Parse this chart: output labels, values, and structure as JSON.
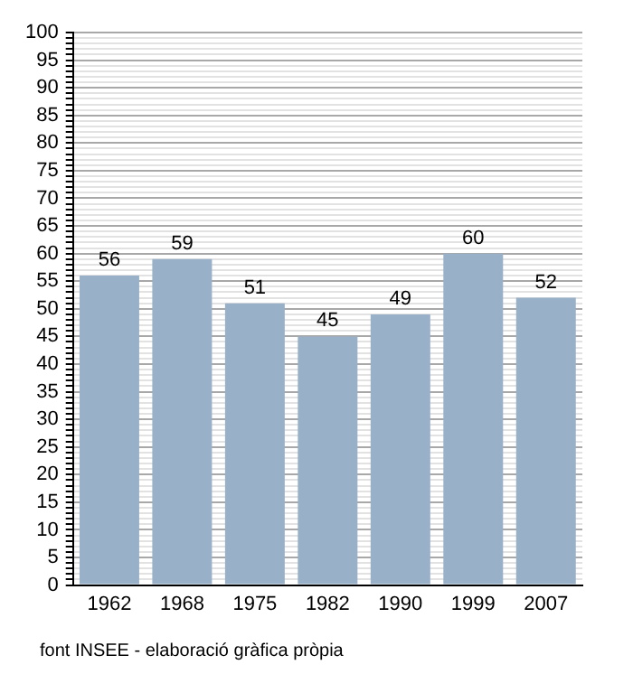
{
  "chart_data": {
    "type": "bar",
    "categories": [
      "1962",
      "1968",
      "1975",
      "1982",
      "1990",
      "1999",
      "2007"
    ],
    "values": [
      56,
      59,
      51,
      45,
      49,
      60,
      52
    ],
    "color": "#98b0c8",
    "ylim": [
      0,
      100
    ],
    "yticks": [
      0,
      {
        "value": 1,
        "label": null
      },
      {
        "value": 2,
        "label": null
      },
      {
        "value": 3,
        "label": null
      },
      {
        "value": 4,
        "label": null
      },
      5,
      {
        "value": 6,
        "label": null
      },
      {
        "value": 7,
        "label": null
      },
      {
        "value": 8,
        "label": null
      },
      {
        "value": 9,
        "label": null
      },
      10,
      {
        "value": 11,
        "label": null
      },
      {
        "value": 12,
        "label": null
      },
      {
        "value": 13,
        "label": null
      },
      {
        "value": 14,
        "label": null
      },
      15,
      {
        "value": 16,
        "label": null
      },
      {
        "value": 17,
        "label": null
      },
      {
        "value": 18,
        "label": null
      },
      {
        "value": 19,
        "label": null
      },
      20,
      {
        "value": 21,
        "label": null
      },
      {
        "value": 22,
        "label": null
      },
      {
        "value": 23,
        "label": null
      },
      {
        "value": 24,
        "label": null
      },
      25,
      {
        "value": 26,
        "label": null
      },
      {
        "value": 27,
        "label": null
      },
      {
        "value": 28,
        "label": null
      },
      {
        "value": 29,
        "label": null
      },
      30,
      {
        "value": 31,
        "label": null
      },
      {
        "value": 32,
        "label": null
      },
      {
        "value": 33,
        "label": null
      },
      {
        "value": 34,
        "label": null
      },
      35,
      {
        "value": 36,
        "label": null
      },
      {
        "value": 37,
        "label": null
      },
      {
        "value": 38,
        "label": null
      },
      {
        "value": 39,
        "label": null
      },
      40,
      {
        "value": 41,
        "label": null
      },
      {
        "value": 42,
        "label": null
      },
      {
        "value": 43,
        "label": null
      },
      {
        "value": 44,
        "label": null
      },
      45,
      {
        "value": 46,
        "label": null
      },
      {
        "value": 47,
        "label": null
      },
      {
        "value": 48,
        "label": null
      },
      {
        "value": 49,
        "label": null
      },
      50,
      {
        "value": 51,
        "label": null
      },
      {
        "value": 52,
        "label": null
      },
      {
        "value": 53,
        "label": null
      },
      {
        "value": 54,
        "label": null
      },
      55,
      {
        "value": 56,
        "label": null
      },
      {
        "value": 57,
        "label": null
      },
      {
        "value": 58,
        "label": null
      },
      {
        "value": 59,
        "label": null
      },
      60,
      {
        "value": 61,
        "label": null
      },
      {
        "value": 62,
        "label": null
      },
      {
        "value": 63,
        "label": null
      },
      {
        "value": 64,
        "label": null
      },
      65,
      {
        "value": 66,
        "label": null
      },
      {
        "value": 67,
        "label": null
      },
      {
        "value": 68,
        "label": null
      },
      {
        "value": 69,
        "label": null
      },
      70,
      {
        "value": 71,
        "label": null
      },
      {
        "value": 72,
        "label": null
      },
      {
        "value": 73,
        "label": null
      },
      {
        "value": 74,
        "label": null
      },
      75,
      {
        "value": 76,
        "label": null
      },
      {
        "value": 77,
        "label": null
      },
      {
        "value": 78,
        "label": null
      },
      {
        "value": 79,
        "label": null
      },
      80,
      {
        "value": 81,
        "label": null
      },
      {
        "value": 82,
        "label": null
      },
      {
        "value": 83,
        "label": null
      },
      {
        "value": 84,
        "label": null
      },
      85,
      {
        "value": 86,
        "label": null
      },
      {
        "value": 87,
        "label": null
      },
      {
        "value": 88,
        "label": null
      },
      {
        "value": 89,
        "label": null
      },
      90,
      {
        "value": 91,
        "label": null
      },
      {
        "value": 92,
        "label": null
      },
      {
        "value": 93,
        "label": null
      },
      {
        "value": 94,
        "label": null
      },
      95,
      {
        "value": 96,
        "label": null
      },
      {
        "value": 97,
        "label": null
      },
      {
        "value": 98,
        "label": null
      },
      {
        "value": 99,
        "label": null
      },
      100
    ],
    "grid": "y",
    "data_labels": true,
    "annotations": [
      "font INSEE - elaboració gràfica pròpia"
    ]
  }
}
